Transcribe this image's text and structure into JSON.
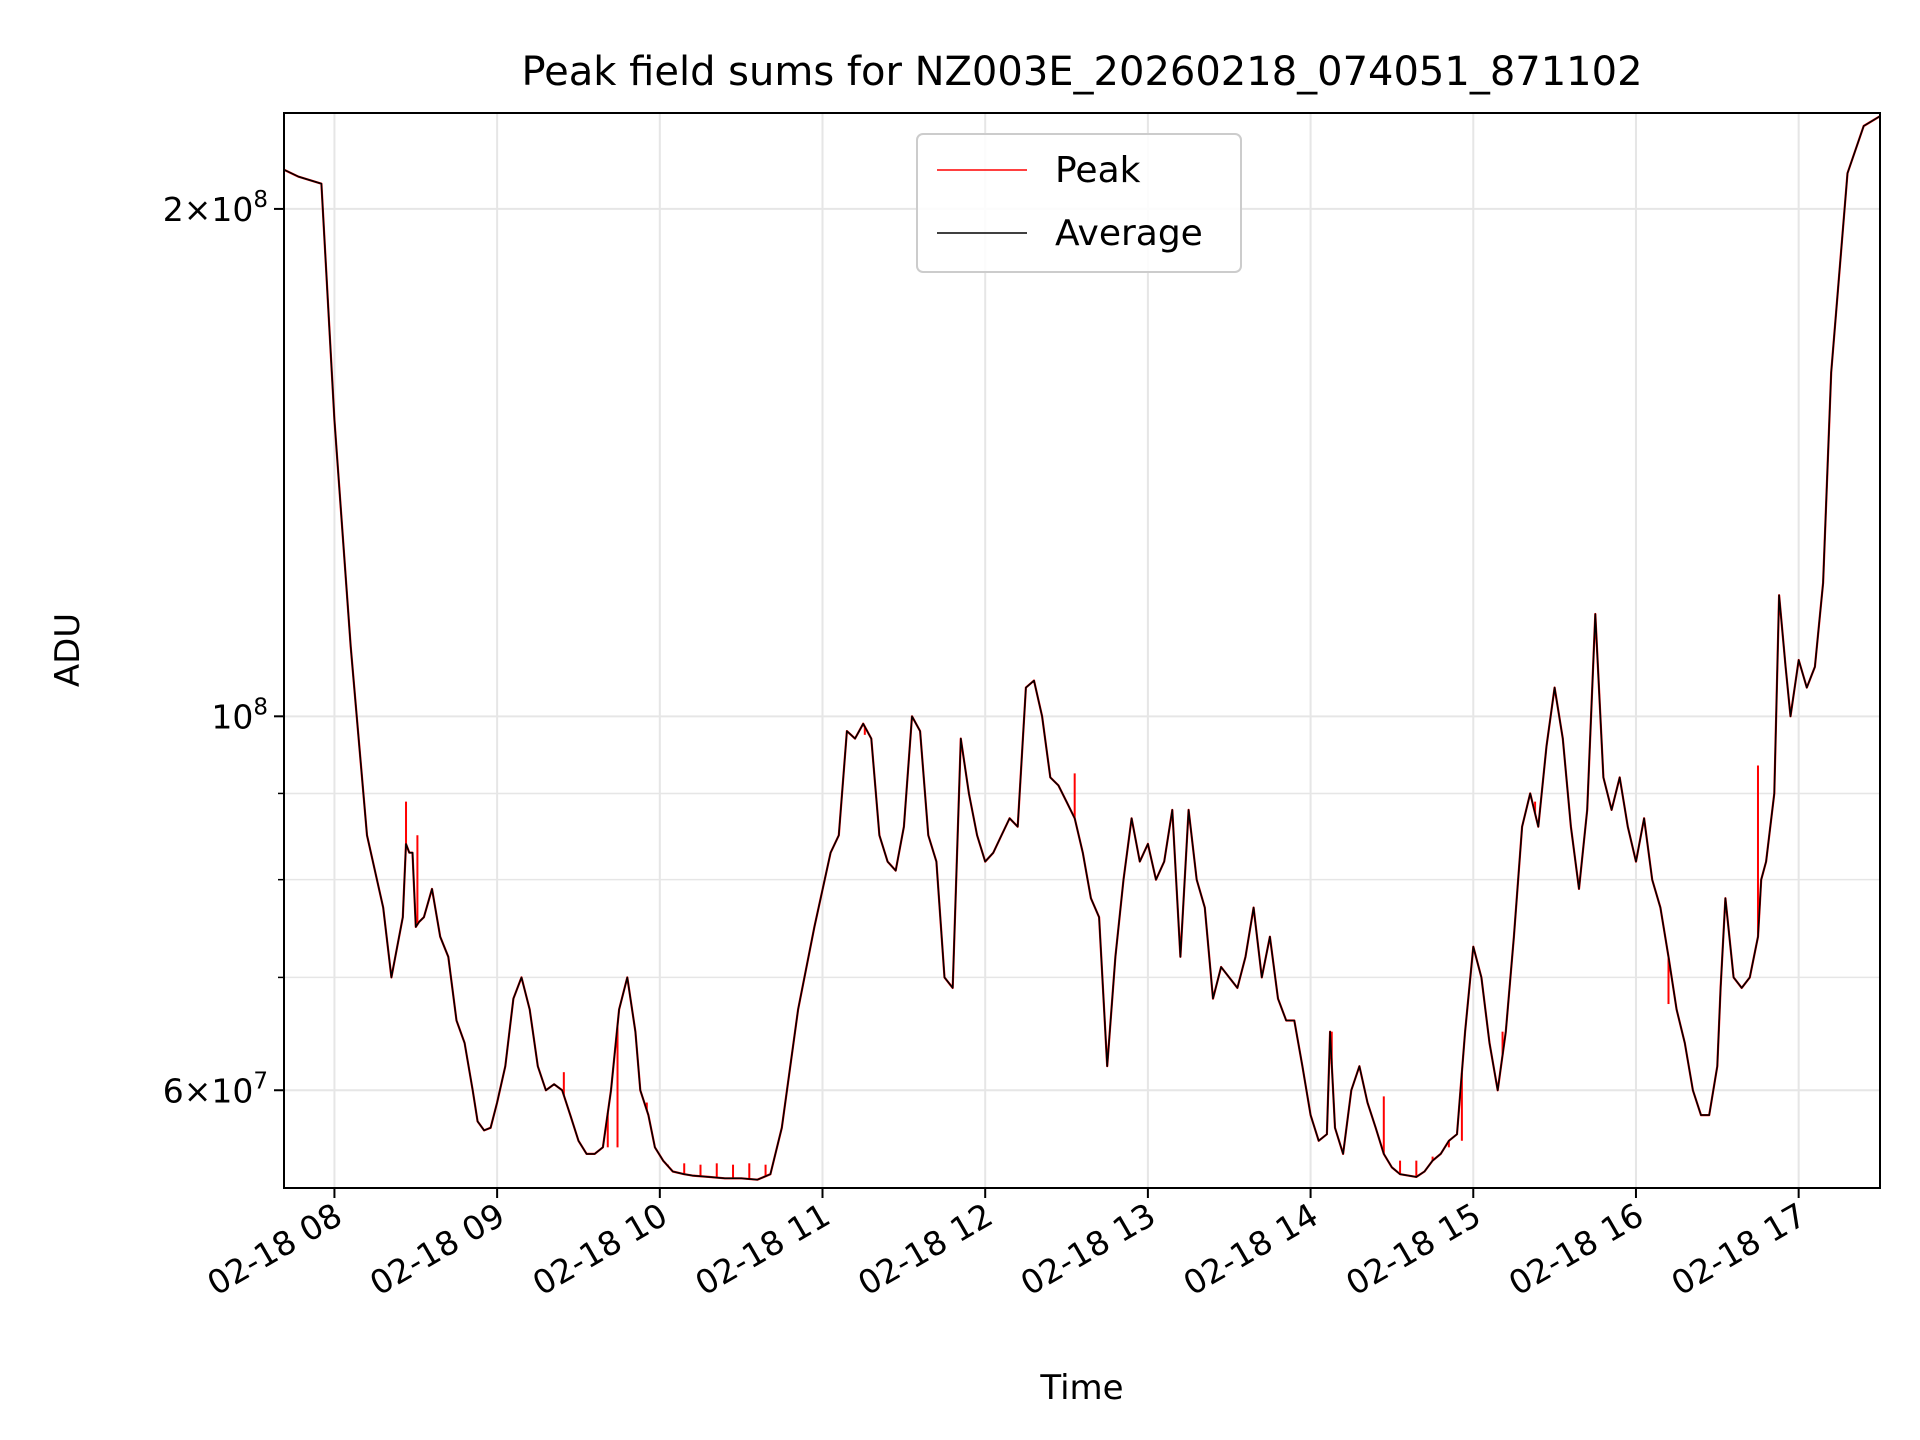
{
  "chart_data": {
    "type": "line",
    "title": "Peak field sums for NZ003E_20260218_074051_871102",
    "xlabel": "Time",
    "ylabel": "ADU",
    "yscale": "log",
    "xlim": [
      7.69,
      17.5
    ],
    "ylim": [
      52500000,
      228000000
    ],
    "grid": true,
    "legend_position": "upper center",
    "x_ticks": [
      {
        "value": 8,
        "label": "02-18 08"
      },
      {
        "value": 9,
        "label": "02-18 09"
      },
      {
        "value": 10,
        "label": "02-18 10"
      },
      {
        "value": 11,
        "label": "02-18 11"
      },
      {
        "value": 12,
        "label": "02-18 12"
      },
      {
        "value": 13,
        "label": "02-18 13"
      },
      {
        "value": 14,
        "label": "02-18 14"
      },
      {
        "value": 15,
        "label": "02-18 15"
      },
      {
        "value": 16,
        "label": "02-18 16"
      },
      {
        "value": 17,
        "label": "02-18 17"
      }
    ],
    "y_ticks_labeled": [
      {
        "value": 60000000,
        "base": "6",
        "exp": "7"
      },
      {
        "value": 100000000,
        "base": "",
        "exp": "8"
      },
      {
        "value": 200000000,
        "base": "2",
        "exp": "8"
      }
    ],
    "y_minor_ticks": [
      70000000,
      80000000,
      90000000
    ],
    "series": [
      {
        "name": "Peak",
        "color": "#ff0000",
        "spikes": [
          {
            "x": 8.44,
            "y": 89000000
          },
          {
            "x": 8.51,
            "y": 85000000
          },
          {
            "x": 9.41,
            "y": 61500000
          },
          {
            "x": 9.68,
            "y": 55500000
          },
          {
            "x": 9.74,
            "y": 55500000
          },
          {
            "x": 9.92,
            "y": 59000000
          },
          {
            "x": 10.05,
            "y": 54200000
          },
          {
            "x": 10.15,
            "y": 54300000
          },
          {
            "x": 10.25,
            "y": 54200000
          },
          {
            "x": 10.35,
            "y": 54300000
          },
          {
            "x": 10.45,
            "y": 54200000
          },
          {
            "x": 10.55,
            "y": 54300000
          },
          {
            "x": 10.65,
            "y": 54200000
          },
          {
            "x": 11.26,
            "y": 97500000
          },
          {
            "x": 12.55,
            "y": 92500000
          },
          {
            "x": 13.63,
            "y": 75000000
          },
          {
            "x": 14.13,
            "y": 65000000
          },
          {
            "x": 14.45,
            "y": 59500000
          },
          {
            "x": 14.55,
            "y": 54500000
          },
          {
            "x": 14.65,
            "y": 54500000
          },
          {
            "x": 14.75,
            "y": 54800000
          },
          {
            "x": 14.85,
            "y": 55500000
          },
          {
            "x": 14.93,
            "y": 56000000
          },
          {
            "x": 15.18,
            "y": 65000000
          },
          {
            "x": 15.38,
            "y": 89000000
          },
          {
            "x": 16.2,
            "y": 67500000
          },
          {
            "x": 16.75,
            "y": 93500000
          }
        ]
      },
      {
        "name": "Average",
        "color": "#000000",
        "x": [
          7.69,
          7.78,
          7.92,
          8.0,
          8.1,
          8.2,
          8.3,
          8.35,
          8.42,
          8.44,
          8.46,
          8.48,
          8.5,
          8.52,
          8.55,
          8.6,
          8.65,
          8.7,
          8.75,
          8.8,
          8.85,
          8.88,
          8.92,
          8.96,
          9.0,
          9.05,
          9.1,
          9.15,
          9.2,
          9.25,
          9.3,
          9.35,
          9.4,
          9.45,
          9.5,
          9.55,
          9.6,
          9.65,
          9.7,
          9.75,
          9.8,
          9.85,
          9.88,
          9.93,
          9.97,
          10.02,
          10.08,
          10.15,
          10.2,
          10.3,
          10.4,
          10.5,
          10.6,
          10.68,
          10.75,
          10.85,
          10.95,
          11.05,
          11.1,
          11.15,
          11.2,
          11.25,
          11.3,
          11.35,
          11.4,
          11.45,
          11.5,
          11.55,
          11.6,
          11.65,
          11.7,
          11.75,
          11.8,
          11.85,
          11.9,
          11.95,
          12.0,
          12.05,
          12.1,
          12.15,
          12.2,
          12.25,
          12.3,
          12.35,
          12.4,
          12.45,
          12.5,
          12.55,
          12.6,
          12.65,
          12.7,
          12.75,
          12.8,
          12.85,
          12.9,
          12.95,
          13.0,
          13.05,
          13.1,
          13.15,
          13.2,
          13.25,
          13.3,
          13.35,
          13.4,
          13.45,
          13.5,
          13.55,
          13.6,
          13.65,
          13.7,
          13.75,
          13.8,
          13.85,
          13.9,
          13.95,
          14.0,
          14.05,
          14.1,
          14.12,
          14.15,
          14.2,
          14.25,
          14.3,
          14.35,
          14.4,
          14.45,
          14.5,
          14.55,
          14.6,
          14.65,
          14.7,
          14.75,
          14.8,
          14.85,
          14.9,
          14.95,
          15.0,
          15.05,
          15.1,
          15.15,
          15.2,
          15.25,
          15.3,
          15.35,
          15.4,
          15.45,
          15.5,
          15.55,
          15.6,
          15.65,
          15.7,
          15.75,
          15.8,
          15.85,
          15.9,
          15.95,
          16.0,
          16.05,
          16.1,
          16.15,
          16.2,
          16.25,
          16.3,
          16.35,
          16.4,
          16.45,
          16.5,
          16.52,
          16.55,
          16.6,
          16.65,
          16.7,
          16.75,
          16.77,
          16.8,
          16.85,
          16.88,
          16.92,
          16.95,
          17.0,
          17.05,
          17.1,
          17.15,
          17.2,
          17.3,
          17.4,
          17.5
        ],
        "y": [
          211000000,
          209000000,
          207000000,
          150000000,
          110000000,
          85000000,
          77000000,
          70000000,
          76000000,
          84000000,
          83000000,
          83000000,
          75000000,
          75500000,
          76000000,
          79000000,
          74000000,
          72000000,
          66000000,
          64000000,
          60000000,
          57500000,
          56800000,
          57000000,
          59000000,
          62000000,
          68000000,
          70000000,
          67000000,
          62000000,
          60000000,
          60500000,
          60000000,
          58000000,
          56000000,
          55000000,
          55000000,
          55500000,
          60000000,
          67000000,
          70000000,
          65000000,
          60000000,
          58000000,
          55500000,
          54500000,
          53700000,
          53500000,
          53400000,
          53300000,
          53200000,
          53200000,
          53100000,
          53500000,
          57000000,
          67000000,
          75000000,
          83000000,
          85000000,
          98000000,
          97000000,
          99000000,
          97000000,
          85000000,
          82000000,
          81000000,
          86000000,
          100000000,
          98000000,
          85000000,
          82000000,
          70000000,
          69000000,
          97000000,
          90000000,
          85000000,
          82000000,
          83000000,
          85000000,
          87000000,
          86000000,
          104000000,
          105000000,
          100000000,
          92000000,
          91000000,
          89000000,
          87000000,
          83000000,
          78000000,
          76000000,
          62000000,
          72000000,
          80000000,
          87000000,
          82000000,
          84000000,
          80000000,
          82000000,
          88000000,
          72000000,
          88000000,
          80000000,
          77000000,
          68000000,
          71000000,
          70000000,
          69000000,
          72000000,
          77000000,
          70000000,
          74000000,
          68000000,
          66000000,
          66000000,
          62000000,
          58000000,
          56000000,
          56500000,
          65000000,
          57000000,
          55000000,
          60000000,
          62000000,
          59000000,
          57000000,
          55000000,
          54000000,
          53500000,
          53400000,
          53300000,
          53700000,
          54500000,
          55000000,
          56000000,
          56500000,
          65000000,
          73000000,
          70000000,
          64000000,
          60000000,
          65000000,
          74000000,
          86000000,
          90000000,
          86000000,
          96000000,
          104000000,
          97000000,
          86000000,
          79000000,
          88000000,
          115000000,
          92000000,
          88000000,
          92000000,
          86000000,
          82000000,
          87000000,
          80000000,
          77000000,
          72000000,
          67000000,
          64000000,
          60000000,
          58000000,
          58000000,
          62000000,
          69000000,
          78000000,
          70000000,
          69000000,
          70000000,
          74000000,
          80000000,
          82000000,
          90000000,
          118000000,
          107000000,
          100000000,
          108000000,
          104000000,
          107000000,
          120000000,
          160000000,
          210000000,
          224000000,
          227000000
        ]
      }
    ]
  }
}
